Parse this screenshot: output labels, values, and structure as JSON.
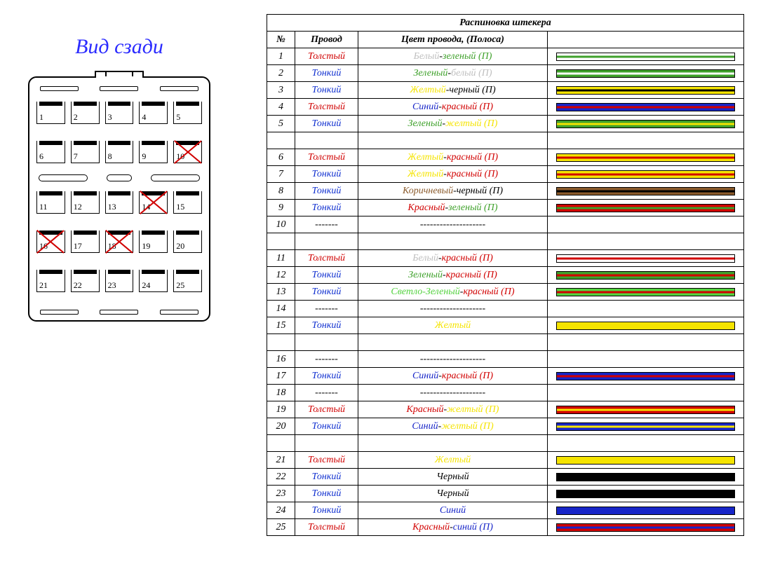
{
  "connector": {
    "title": "Вид сзади",
    "rows": 5,
    "cols": 5,
    "crossed_pins": [
      10,
      14,
      16,
      18
    ]
  },
  "table": {
    "title": "Распиновка штекера",
    "headers": {
      "num": "№",
      "wire": "Провод",
      "color": "Цвет провода, (Полоса)"
    },
    "blank_wire": "-------",
    "blank_color": "--------------------",
    "wire_colors": {
      "thick": "#d00000",
      "thin": "#1030d0"
    },
    "wire_labels": {
      "thick": "Толстый",
      "thin": "Тонкий"
    },
    "palette": {
      "white": "#ffffff",
      "green": "#3fa12b",
      "yellow": "#f5e400",
      "black": "#000000",
      "blue": "#1725c8",
      "red": "#d10000",
      "brown": "#8a5a2b",
      "lightgreen": "#54d23f",
      "grey": "#bfbfbf"
    },
    "rows": [
      {
        "n": 1,
        "wire": "thick",
        "parts": [
          [
            "Белый",
            "grey"
          ],
          [
            "-",
            "black"
          ],
          [
            "зеленый",
            "green"
          ],
          [
            " (П)",
            "green"
          ]
        ],
        "swatch": {
          "base": "white",
          "stripe": "green"
        }
      },
      {
        "n": 2,
        "wire": "thin",
        "parts": [
          [
            "Зеленый",
            "green"
          ],
          [
            "-",
            "black"
          ],
          [
            "белый",
            "grey"
          ],
          [
            " (П)",
            "grey"
          ]
        ],
        "swatch": {
          "base": "green",
          "stripe": "white"
        }
      },
      {
        "n": 3,
        "wire": "thin",
        "parts": [
          [
            "Желтый",
            "yellow"
          ],
          [
            "-",
            "black"
          ],
          [
            "черный",
            "black"
          ],
          [
            " (П)",
            "black"
          ]
        ],
        "swatch": {
          "base": "yellow",
          "stripe": "black"
        }
      },
      {
        "n": 4,
        "wire": "thick",
        "parts": [
          [
            "Синий",
            "blue"
          ],
          [
            "-",
            "black"
          ],
          [
            "красный",
            "red"
          ],
          [
            " (П)",
            "red"
          ]
        ],
        "swatch": {
          "base": "blue",
          "stripe": "red"
        }
      },
      {
        "n": 5,
        "wire": "thin",
        "parts": [
          [
            "Зеленый",
            "green"
          ],
          [
            "-",
            "black"
          ],
          [
            "желтый",
            "yellow"
          ],
          [
            " (П)",
            "yellow"
          ]
        ],
        "swatch": {
          "base": "green",
          "stripe": "yellow"
        }
      },
      {
        "spacer": true
      },
      {
        "n": 6,
        "wire": "thick",
        "parts": [
          [
            "Желтый",
            "yellow"
          ],
          [
            "-",
            "black"
          ],
          [
            "красный",
            "red"
          ],
          [
            " (П)",
            "red"
          ]
        ],
        "swatch": {
          "base": "yellow",
          "stripe": "red"
        }
      },
      {
        "n": 7,
        "wire": "thin",
        "parts": [
          [
            "Желтый",
            "yellow"
          ],
          [
            "-",
            "black"
          ],
          [
            "красный",
            "red"
          ],
          [
            " (П)",
            "red"
          ]
        ],
        "swatch": {
          "base": "yellow",
          "stripe": "red"
        }
      },
      {
        "n": 8,
        "wire": "thin",
        "parts": [
          [
            "Коричневый",
            "brown"
          ],
          [
            "-",
            "black"
          ],
          [
            "черный",
            "black"
          ],
          [
            " (П)",
            "black"
          ]
        ],
        "swatch": {
          "base": "brown",
          "stripe": "black"
        }
      },
      {
        "n": 9,
        "wire": "thin",
        "parts": [
          [
            "Красный",
            "red"
          ],
          [
            "-",
            "black"
          ],
          [
            "зеленый",
            "green"
          ],
          [
            " (П)",
            "green"
          ]
        ],
        "swatch": {
          "base": "red",
          "stripe": "green"
        }
      },
      {
        "n": 10,
        "blank": true
      },
      {
        "spacer": true
      },
      {
        "n": 11,
        "wire": "thick",
        "parts": [
          [
            "Белый",
            "grey"
          ],
          [
            "-",
            "black"
          ],
          [
            "красный",
            "red"
          ],
          [
            " (П)",
            "red"
          ]
        ],
        "swatch": {
          "base": "white",
          "stripe": "red"
        }
      },
      {
        "n": 12,
        "wire": "thin",
        "parts": [
          [
            "Зеленый",
            "green"
          ],
          [
            "-",
            "black"
          ],
          [
            "красный",
            "red"
          ],
          [
            " (П)",
            "red"
          ]
        ],
        "swatch": {
          "base": "green",
          "stripe": "red"
        }
      },
      {
        "n": 13,
        "wire": "thin",
        "parts": [
          [
            "Светло-Зеленый",
            "lightgreen"
          ],
          [
            "-",
            "black"
          ],
          [
            "красный",
            "red"
          ],
          [
            " (П)",
            "red"
          ]
        ],
        "swatch": {
          "base": "lightgreen",
          "stripe": "red"
        }
      },
      {
        "n": 14,
        "blank": true
      },
      {
        "n": 15,
        "wire": "thin",
        "parts": [
          [
            "Желтый",
            "yellow"
          ]
        ],
        "swatch": {
          "base": "yellow"
        }
      },
      {
        "spacer": true
      },
      {
        "n": 16,
        "blank": true
      },
      {
        "n": 17,
        "wire": "thin",
        "parts": [
          [
            "Синий",
            "blue"
          ],
          [
            "-",
            "black"
          ],
          [
            "красный",
            "red"
          ],
          [
            " (П)",
            "red"
          ]
        ],
        "swatch": {
          "base": "blue",
          "stripe": "red"
        }
      },
      {
        "n": 18,
        "blank": true
      },
      {
        "n": 19,
        "wire": "thick",
        "parts": [
          [
            "Красный",
            "red"
          ],
          [
            "-",
            "black"
          ],
          [
            "желтый",
            "yellow"
          ],
          [
            " (П)",
            "yellow"
          ]
        ],
        "swatch": {
          "base": "red",
          "stripe": "yellow"
        }
      },
      {
        "n": 20,
        "wire": "thin",
        "parts": [
          [
            "Синий",
            "blue"
          ],
          [
            "-",
            "black"
          ],
          [
            "желтый",
            "yellow"
          ],
          [
            " (П)",
            "yellow"
          ]
        ],
        "swatch": {
          "base": "blue",
          "stripe": "yellow"
        }
      },
      {
        "spacer": true
      },
      {
        "n": 21,
        "wire": "thick",
        "parts": [
          [
            "Желтый",
            "yellow"
          ]
        ],
        "swatch": {
          "base": "yellow"
        }
      },
      {
        "n": 22,
        "wire": "thin",
        "parts": [
          [
            "Черный",
            "black"
          ]
        ],
        "swatch": {
          "base": "black"
        }
      },
      {
        "n": 23,
        "wire": "thin",
        "parts": [
          [
            "Черный",
            "black"
          ]
        ],
        "swatch": {
          "base": "black"
        }
      },
      {
        "n": 24,
        "wire": "thin",
        "parts": [
          [
            "Синий",
            "blue"
          ]
        ],
        "swatch": {
          "base": "blue"
        }
      },
      {
        "n": 25,
        "wire": "thick",
        "parts": [
          [
            "Красный",
            "red"
          ],
          [
            "-",
            "black"
          ],
          [
            "синий",
            "blue"
          ],
          [
            " (П)",
            "blue"
          ]
        ],
        "swatch": {
          "base": "red",
          "stripe": "blue"
        }
      }
    ]
  }
}
